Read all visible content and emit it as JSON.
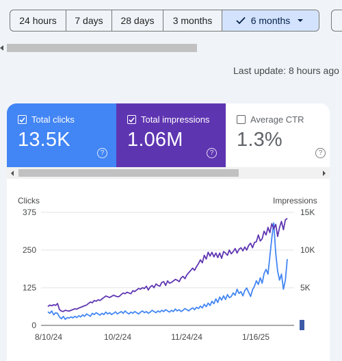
{
  "date_range": {
    "options": [
      "24 hours",
      "7 days",
      "28 days",
      "3 months",
      "6 months"
    ],
    "selected": "6 months"
  },
  "last_update": "Last update: 8 hours ago",
  "metrics": {
    "clicks": {
      "label": "Total clicks",
      "value": "13.5K",
      "checked": true,
      "color": "#4285f4"
    },
    "impressions": {
      "label": "Total impressions",
      "value": "1.06M",
      "checked": true,
      "color": "#5e35b1"
    },
    "ctr": {
      "label": "Average CTR",
      "value": "1.3%",
      "checked": false
    }
  },
  "help_glyph": "?",
  "chart_data": {
    "type": "line",
    "y_left_label": "Clicks",
    "y_right_label": "Impressions",
    "y_left_ticks": [
      "375",
      "250",
      "125",
      "0"
    ],
    "y_right_ticks": [
      "15K",
      "10K",
      "5K"
    ],
    "y_left_range": [
      0,
      375
    ],
    "y_right_range": [
      0,
      15000
    ],
    "x_tick_labels": [
      "8/10/24",
      "10/2/24",
      "11/24/24",
      "1/16/25"
    ],
    "grid": true,
    "series": [
      {
        "name": "Total clicks",
        "axis": "left",
        "color": "#4285f4",
        "values": [
          45,
          40,
          48,
          35,
          42,
          40,
          28,
          22,
          30,
          20,
          26,
          24,
          28,
          25,
          30,
          26,
          32,
          28,
          35,
          30,
          38,
          34,
          30,
          40,
          36,
          42,
          38,
          34,
          40,
          36,
          44,
          38,
          42,
          36,
          40,
          45,
          38,
          42,
          46,
          40,
          48,
          42,
          38,
          44,
          40,
          46,
          42,
          38,
          44,
          48,
          42,
          46,
          40,
          44,
          50,
          46,
          42,
          48,
          44,
          50,
          46,
          52,
          48,
          44,
          50,
          46,
          54,
          48,
          52,
          46,
          50,
          56,
          52,
          48,
          54,
          58,
          52,
          60,
          56,
          64,
          58,
          70,
          62,
          74,
          66,
          80,
          72,
          88,
          76,
          94,
          84,
          98,
          86,
          102,
          92,
          96,
          108,
          100,
          120,
          106,
          112,
          98,
          116,
          124,
          110,
          96,
          118,
          130,
          148,
          136,
          158,
          140,
          172,
          186,
          170,
          230,
          290,
          340,
          240,
          180,
          150,
          170,
          120,
          150,
          220
        ]
      },
      {
        "name": "Total impressions",
        "axis": "right",
        "color": "#5e35b1",
        "values": [
          2500,
          2700,
          2600,
          2750,
          2650,
          2900,
          2100,
          1900,
          1850,
          2000,
          1950,
          1900,
          2000,
          2100,
          2200,
          2150,
          2300,
          2400,
          2500,
          2600,
          2700,
          2900,
          3100,
          3000,
          3300,
          3200,
          3400,
          3300,
          3500,
          3700,
          3900,
          3800,
          3700,
          3850,
          4000,
          3900,
          3800,
          3850,
          4100,
          4300,
          4200,
          4400,
          4300,
          4200,
          4600,
          4500,
          4700,
          4900,
          4800,
          5000,
          4900,
          5200,
          4700,
          5100,
          5300,
          5000,
          5500,
          5300,
          5200,
          5700,
          5800,
          5300,
          5900,
          5600,
          5700,
          5900,
          6100,
          6000,
          5800,
          6300,
          6500,
          6200,
          6700,
          7000,
          7300,
          7600,
          7300,
          7800,
          8200,
          8700,
          8300,
          9300,
          8800,
          9700,
          9200,
          9700,
          9100,
          9600,
          9000,
          9600,
          8900,
          9800,
          9600,
          9300,
          10000,
          9500,
          9800,
          10200,
          9600,
          10100,
          10300,
          9900,
          10400,
          10000,
          10600,
          10900,
          10300,
          11000,
          11100,
          12000,
          11200,
          11500,
          12500,
          12000,
          13000,
          12300,
          13500,
          12800,
          13400,
          11800,
          13000,
          13800,
          12700,
          14000,
          14200
        ]
      }
    ]
  }
}
